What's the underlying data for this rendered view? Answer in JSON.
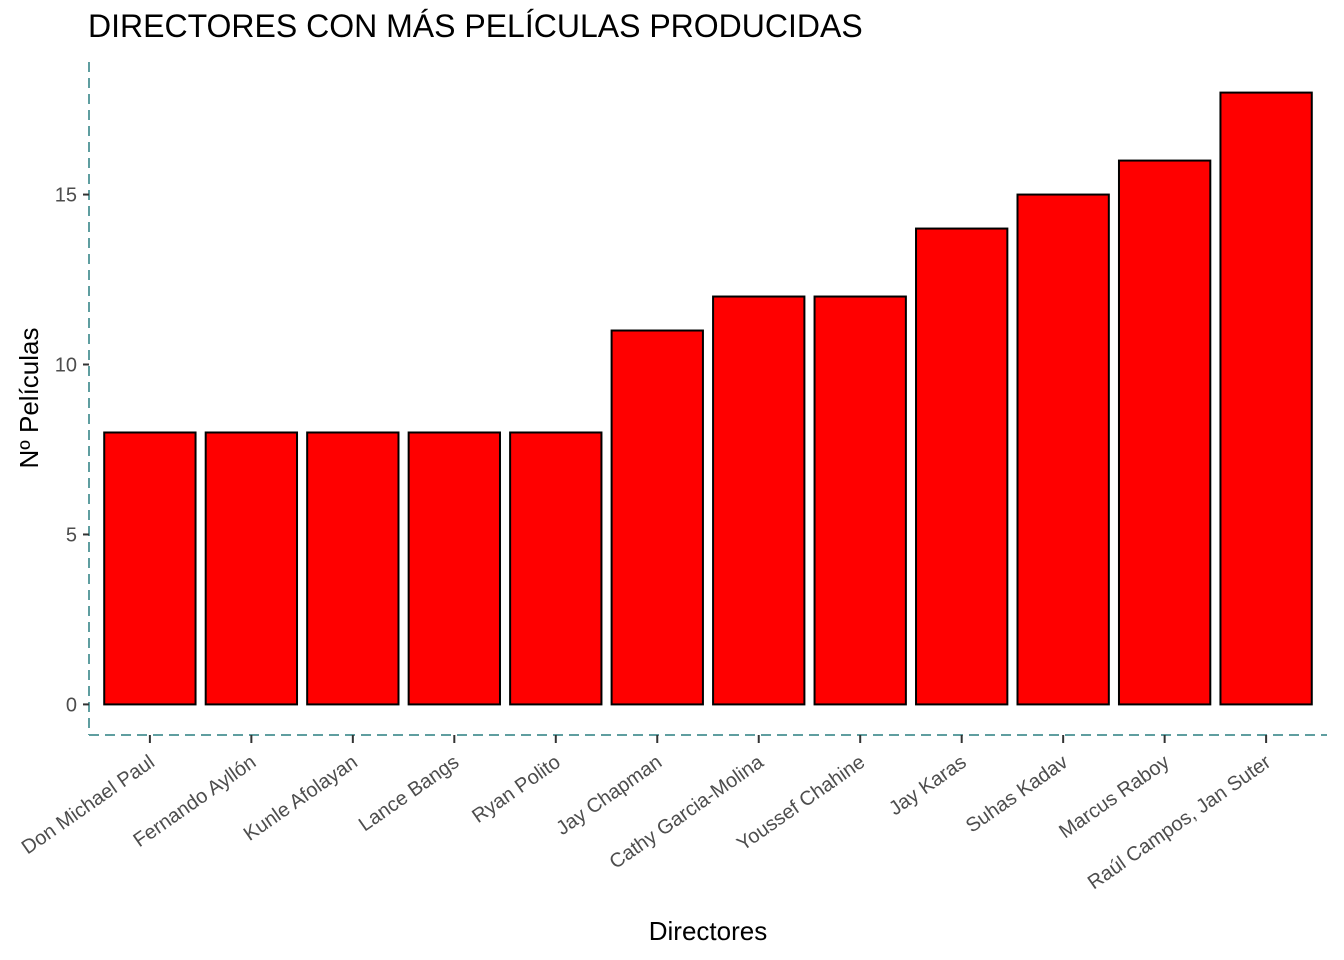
{
  "chart_data": {
    "type": "bar",
    "title": "DIRECTORES CON MÁS PELÍCULAS PRODUCIDAS",
    "xlabel": "Directores",
    "ylabel": "Nº Películas",
    "categories": [
      "Don Michael Paul",
      "Fernando Ayllón",
      "Kunle Afolayan",
      "Lance Bangs",
      "Ryan Polito",
      "Jay Chapman",
      "Cathy Garcia-Molina",
      "Youssef Chahine",
      "Jay Karas",
      "Suhas Kadav",
      "Marcus Raboy",
      "Raúl Campos, Jan Suter"
    ],
    "values": [
      8,
      8,
      8,
      8,
      8,
      11,
      12,
      12,
      14,
      15,
      16,
      18
    ],
    "yticks": [
      0,
      5,
      10,
      15
    ],
    "ylim": [
      -0.9,
      18.9
    ],
    "grid": false,
    "legend": "none",
    "colors": {
      "bar_fill": "#ff0000",
      "bar_stroke": "#000000",
      "axis_line": "#5f9ea0",
      "tick_text": "#4d4d4d",
      "title_text": "#000000"
    }
  }
}
